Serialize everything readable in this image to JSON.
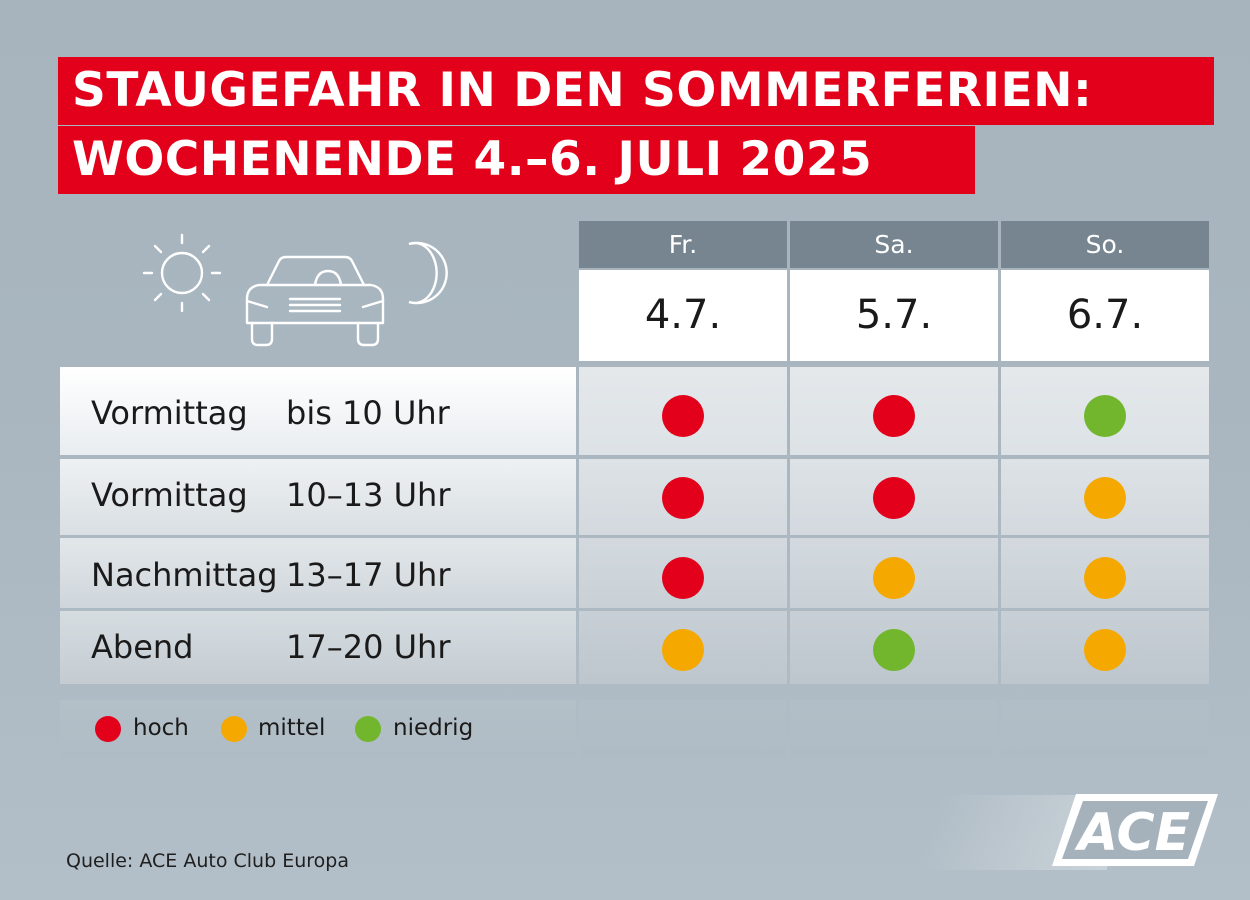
{
  "title": {
    "line1": "STAUGEFAHR IN DEN SOMMERFERIEN:",
    "line2": "WOCHENENDE 4.–6. JULI 2025"
  },
  "icons": [
    "sun-icon",
    "car-icon",
    "moon-icon"
  ],
  "days": [
    {
      "name": "Fr.",
      "date": "4.7."
    },
    {
      "name": "Sa.",
      "date": "5.7."
    },
    {
      "name": "So.",
      "date": "6.7."
    }
  ],
  "rows": [
    {
      "period": "Vormittag",
      "time": "bis 10 Uhr",
      "levels": [
        "hoch",
        "hoch",
        "niedrig"
      ]
    },
    {
      "period": "Vormittag",
      "time": "10–13 Uhr",
      "levels": [
        "hoch",
        "hoch",
        "mittel"
      ]
    },
    {
      "period": "Nachmittag",
      "time": "13–17 Uhr",
      "levels": [
        "hoch",
        "mittel",
        "mittel"
      ]
    },
    {
      "period": "Abend",
      "time": "17–20 Uhr",
      "levels": [
        "mittel",
        "niedrig",
        "mittel"
      ]
    }
  ],
  "legend": [
    {
      "level": "hoch",
      "label": "hoch"
    },
    {
      "level": "mittel",
      "label": "mittel"
    },
    {
      "level": "niedrig",
      "label": "niedrig"
    }
  ],
  "colors": {
    "hoch": "#e2001a",
    "mittel": "#f5a800",
    "niedrig": "#72b62d",
    "title_bg": "#e2001a",
    "day_header_bg": "#76858f"
  },
  "source": "Quelle: ACE Auto Club Europa",
  "logo_text": "ACE"
}
